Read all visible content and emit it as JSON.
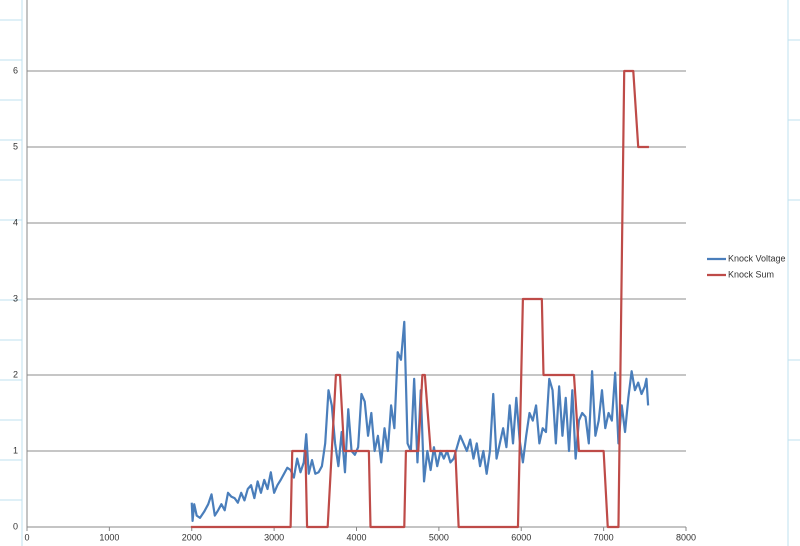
{
  "chart_data": {
    "type": "line",
    "xlim": [
      0,
      8000
    ],
    "xticks": [
      0,
      1000,
      2000,
      3000,
      4000,
      5000,
      6000,
      7000,
      8000
    ],
    "ylim": [
      0,
      7
    ],
    "yticks": [
      0,
      1,
      2,
      3,
      4,
      5,
      6
    ],
    "grid": true,
    "legend": "right",
    "series": [
      {
        "name": "Knock Voltage",
        "color": "#4a7ebb",
        "x": [
          2000,
          2010,
          2030,
          2060,
          2100,
          2150,
          2200,
          2240,
          2280,
          2320,
          2360,
          2400,
          2440,
          2480,
          2520,
          2560,
          2600,
          2640,
          2680,
          2720,
          2760,
          2800,
          2840,
          2880,
          2920,
          2960,
          3000,
          3040,
          3080,
          3120,
          3160,
          3200,
          3240,
          3280,
          3320,
          3360,
          3390,
          3420,
          3460,
          3500,
          3540,
          3580,
          3620,
          3660,
          3700,
          3740,
          3780,
          3820,
          3860,
          3900,
          3940,
          3980,
          4020,
          4060,
          4100,
          4140,
          4180,
          4220,
          4260,
          4300,
          4340,
          4380,
          4420,
          4460,
          4500,
          4540,
          4580,
          4620,
          4660,
          4700,
          4740,
          4780,
          4820,
          4860,
          4900,
          4940,
          4980,
          5020,
          5060,
          5100,
          5140,
          5180,
          5220,
          5260,
          5300,
          5340,
          5380,
          5420,
          5460,
          5500,
          5540,
          5580,
          5620,
          5660,
          5700,
          5740,
          5780,
          5820,
          5860,
          5900,
          5940,
          5980,
          6020,
          6060,
          6100,
          6140,
          6180,
          6220,
          6260,
          6300,
          6340,
          6380,
          6420,
          6460,
          6500,
          6540,
          6580,
          6620,
          6660,
          6700,
          6740,
          6780,
          6820,
          6860,
          6900,
          6940,
          6980,
          7020,
          7060,
          7100,
          7140,
          7180,
          7220,
          7260,
          7300,
          7340,
          7380,
          7420,
          7460,
          7500,
          7520,
          7540
        ],
        "values": [
          0.32,
          0.08,
          0.3,
          0.15,
          0.12,
          0.2,
          0.3,
          0.43,
          0.15,
          0.22,
          0.3,
          0.22,
          0.45,
          0.4,
          0.38,
          0.32,
          0.45,
          0.35,
          0.5,
          0.55,
          0.38,
          0.6,
          0.45,
          0.62,
          0.5,
          0.72,
          0.45,
          0.55,
          0.62,
          0.7,
          0.78,
          0.75,
          0.65,
          0.9,
          0.72,
          0.85,
          1.22,
          0.7,
          0.88,
          0.7,
          0.72,
          0.8,
          1.1,
          1.8,
          1.6,
          1.1,
          0.8,
          1.25,
          0.72,
          1.55,
          1.0,
          0.95,
          1.05,
          1.75,
          1.65,
          1.2,
          1.5,
          1.0,
          1.2,
          0.85,
          1.3,
          1.0,
          1.6,
          1.3,
          2.3,
          2.2,
          2.7,
          1.1,
          1.0,
          1.95,
          0.85,
          1.8,
          0.6,
          1.0,
          0.75,
          1.05,
          0.8,
          1.0,
          0.9,
          1.0,
          0.85,
          0.9,
          1.05,
          1.2,
          1.1,
          1.0,
          1.15,
          0.9,
          1.1,
          0.8,
          1.0,
          0.7,
          1.0,
          1.75,
          0.9,
          1.1,
          1.3,
          1.05,
          1.6,
          1.1,
          1.7,
          1.15,
          0.85,
          1.2,
          1.5,
          1.4,
          1.6,
          1.1,
          1.3,
          1.25,
          1.95,
          1.8,
          1.1,
          1.85,
          1.2,
          1.7,
          1.0,
          1.8,
          0.9,
          1.4,
          1.5,
          1.45,
          1.1,
          2.05,
          1.2,
          1.4,
          1.8,
          1.3,
          1.5,
          1.4,
          2.03,
          1.1,
          1.6,
          1.25,
          1.7,
          2.05,
          1.8,
          1.9,
          1.75,
          1.85,
          1.95,
          1.6
        ]
      },
      {
        "name": "Knock Sum",
        "color": "#be4b48",
        "x": [
          1990,
          3200,
          3220,
          3380,
          3400,
          3650,
          3700,
          3750,
          3800,
          3850,
          4150,
          4170,
          4580,
          4600,
          4750,
          4800,
          4830,
          4900,
          5200,
          5240,
          5960,
          6020,
          6250,
          6270,
          6640,
          6700,
          7000,
          7050,
          7180,
          7250,
          7360,
          7420,
          7550
        ],
        "values": [
          0,
          0,
          1,
          1,
          0,
          0,
          1,
          2,
          2,
          1,
          1,
          0,
          0,
          1,
          1,
          2,
          2,
          1,
          1,
          0,
          0,
          3,
          3,
          2,
          2,
          1,
          1,
          0,
          0,
          6,
          6,
          5,
          5
        ]
      }
    ]
  }
}
